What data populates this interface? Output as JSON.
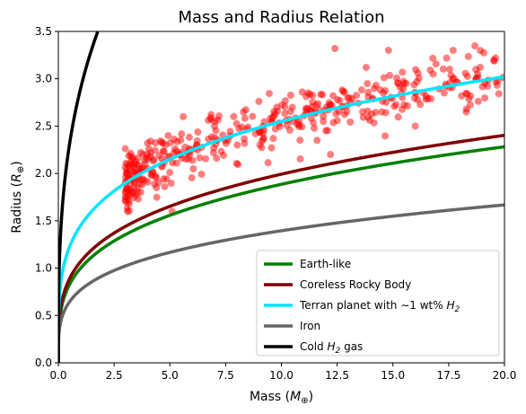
{
  "chart_data": {
    "type": "line",
    "title": "Mass and Radius Relation",
    "xlabel": {
      "main": "Mass (",
      "math": "M",
      "sub": "⊕",
      "close": ")"
    },
    "ylabel": {
      "main": "Radius (",
      "math": "R",
      "sub": "⊕",
      "close": ")"
    },
    "xlim": [
      0,
      20
    ],
    "ylim": [
      0,
      3.5
    ],
    "x_ticks": [
      "0.0",
      "2.5",
      "5.0",
      "7.5",
      "10.0",
      "12.5",
      "15.0",
      "17.5",
      "20.0"
    ],
    "y_ticks": [
      "0.0",
      "0.5",
      "1.0",
      "1.5",
      "2.0",
      "2.5",
      "3.0",
      "3.5"
    ],
    "grid": false,
    "legend_position": "lower-right",
    "series": [
      {
        "name": "Earth-like",
        "color": "#008000",
        "coef": 1.0,
        "exp": 0.2754
      },
      {
        "name": "Coreless Rocky Body",
        "color": "#800000",
        "coef": 1.07,
        "exp": 0.27
      },
      {
        "name": "Terran planet with ~1 wt% H2",
        "legend": {
          "pre": "Terran planet with ",
          "sym": "∼",
          "mid": "1 wt% ",
          "math": "H",
          "sub": "2",
          "post": ""
        },
        "color": "#00e5ff",
        "coef": 1.45,
        "exp": 0.245
      },
      {
        "name": "Iron",
        "color": "#666666",
        "coef": 0.77,
        "exp": 0.258
      },
      {
        "name": "Cold H2 gas",
        "legend": {
          "pre": "Cold ",
          "sym": "",
          "mid": "",
          "math": "H",
          "sub": "2",
          "post": " gas"
        },
        "color": "#000000",
        "coef": 2.9,
        "exp": 0.33
      }
    ],
    "scatter": {
      "color": "#ff0000",
      "opacity": 0.5,
      "count": 430,
      "x_range": [
        3.0,
        20.0
      ],
      "trend": {
        "coef": 1.45,
        "exp": 0.245
      },
      "scatter_sd": 0.15,
      "sample_points": [
        [
          3.1,
          1.6
        ],
        [
          3.3,
          2.15
        ],
        [
          3.6,
          1.95
        ],
        [
          4.0,
          2.05
        ],
        [
          4.4,
          1.85
        ],
        [
          5.1,
          1.6
        ],
        [
          5.6,
          2.6
        ],
        [
          6.2,
          2.3
        ],
        [
          7.0,
          2.5
        ],
        [
          7.6,
          2.35
        ],
        [
          8.3,
          2.65
        ],
        [
          9.0,
          2.45
        ],
        [
          9.8,
          2.7
        ],
        [
          10.5,
          2.55
        ],
        [
          11.2,
          2.85
        ],
        [
          11.6,
          2.35
        ],
        [
          12.2,
          2.2
        ],
        [
          12.4,
          3.32
        ],
        [
          13.1,
          2.75
        ],
        [
          13.8,
          3.12
        ],
        [
          14.5,
          2.65
        ],
        [
          14.8,
          3.3
        ],
        [
          15.5,
          2.95
        ],
        [
          16.0,
          2.5
        ],
        [
          16.8,
          3.05
        ],
        [
          17.3,
          2.85
        ],
        [
          17.7,
          3.3
        ],
        [
          18.3,
          2.68
        ],
        [
          18.8,
          3.05
        ],
        [
          19.6,
          3.22
        ]
      ]
    }
  }
}
